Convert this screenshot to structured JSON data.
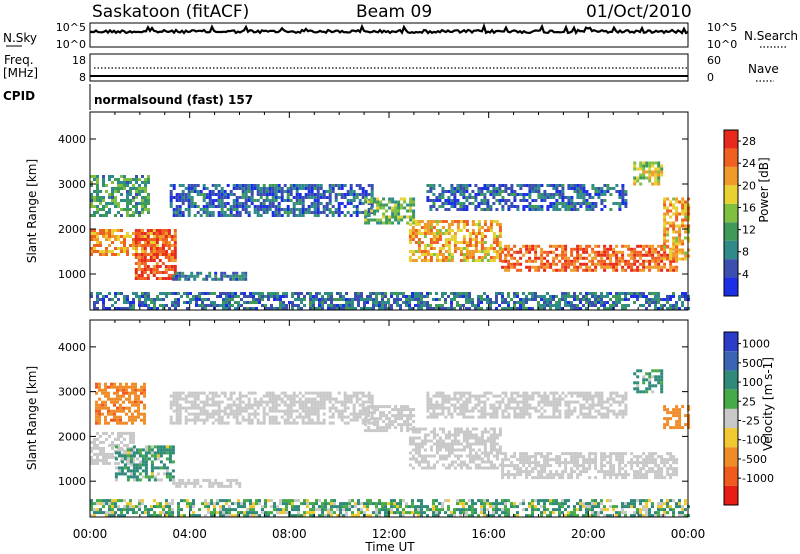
{
  "header": {
    "station": "Saskatoon (fitACF)",
    "beam": "Beam 09",
    "date": "01/Oct/2010"
  },
  "status_panel": {
    "nsky_label": "N.Sky",
    "nsky_ticks": [
      "10^5",
      "10^0"
    ],
    "nsearch_label": "N.Search",
    "nsearch_ticks": [
      "10^5",
      "10^0"
    ],
    "freq_label_line1": "Freq.",
    "freq_label_line2": "[MHz]",
    "freq_ticks": [
      "18",
      "8"
    ],
    "nave_label": "Nave",
    "nave_ticks": [
      "60",
      "0"
    ],
    "cpid_label": "CPID",
    "cpid_value": "normalsound (fast) 157"
  },
  "chart_data": [
    {
      "type": "heatmap",
      "name": "power",
      "ylabel": "Slant Range [km]",
      "yticks": [
        1000,
        2000,
        3000,
        4000
      ],
      "ylim": [
        200,
        4600
      ],
      "xlim": [
        0,
        24
      ],
      "xticks": [
        "00:00",
        "04:00",
        "08:00",
        "12:00",
        "16:00",
        "20:00",
        "00:00"
      ],
      "colorbar": {
        "label": "Power [dB]",
        "ticks": [
          4,
          8,
          12,
          16,
          20,
          24,
          28
        ],
        "range": [
          0,
          30
        ],
        "colors": [
          "#1c2fe6",
          "#3a4fb0",
          "#2f8a8a",
          "#3f9a5a",
          "#7fc040",
          "#e8d232",
          "#f09a2a",
          "#f06020",
          "#e82a1c"
        ]
      },
      "echo_bands_km": [
        {
          "from_h": 0.0,
          "to_h": 3.2,
          "lower": 1400,
          "upper": 2000,
          "dB": 22
        },
        {
          "from_h": 1.8,
          "to_h": 3.4,
          "lower": 900,
          "upper": 2000,
          "dB": 27
        },
        {
          "from_h": 0.0,
          "to_h": 2.3,
          "lower": 2300,
          "upper": 3200,
          "dB": 11
        },
        {
          "from_h": 3.3,
          "to_h": 6.2,
          "lower": 850,
          "upper": 1050,
          "dB": 8
        },
        {
          "from_h": 3.2,
          "to_h": 11.3,
          "lower": 2300,
          "upper": 3000,
          "dB": 6
        },
        {
          "from_h": 11.0,
          "to_h": 13.0,
          "lower": 2150,
          "upper": 2700,
          "dB": 13
        },
        {
          "from_h": 12.8,
          "to_h": 16.5,
          "lower": 1300,
          "upper": 2200,
          "dB": 21
        },
        {
          "from_h": 16.5,
          "to_h": 23.5,
          "lower": 1050,
          "upper": 1650,
          "dB": 25
        },
        {
          "from_h": 13.5,
          "to_h": 21.5,
          "lower": 2450,
          "upper": 3000,
          "dB": 6
        },
        {
          "from_h": 21.8,
          "to_h": 23.0,
          "lower": 3000,
          "upper": 3500,
          "dB": 17
        },
        {
          "from_h": 23.0,
          "to_h": 24.0,
          "lower": 1300,
          "upper": 2700,
          "dB": 21
        },
        {
          "from_h": 0.0,
          "to_h": 24.0,
          "lower": 250,
          "upper": 600,
          "dB": 7
        }
      ]
    },
    {
      "type": "heatmap",
      "name": "velocity",
      "ylabel": "Slant Range [km]",
      "yticks": [
        1000,
        2000,
        3000,
        4000
      ],
      "ylim": [
        200,
        4600
      ],
      "xlim": [
        0,
        24
      ],
      "xlabel": "Time UT",
      "xticks": [
        "00:00",
        "04:00",
        "08:00",
        "12:00",
        "16:00",
        "20:00",
        "00:00"
      ],
      "colorbar": {
        "label": "Velocity [m s-1]",
        "ticks": [
          "1000",
          "500",
          "100",
          "25",
          "-25",
          "-100",
          "-500",
          "-1000"
        ],
        "colors": [
          "#2a3cc8",
          "#3c64b4",
          "#2f8a7a",
          "#46aa46",
          "#c8c8c8",
          "#f0c832",
          "#f08c28",
          "#f05a1e",
          "#e81e14"
        ]
      },
      "echo_bands_km": [
        {
          "from_h": 0.0,
          "to_h": 1.8,
          "lower": 1400,
          "upper": 2100,
          "vel": 0
        },
        {
          "from_h": 0.2,
          "to_h": 2.2,
          "lower": 2300,
          "upper": 3200,
          "vel": -400
        },
        {
          "from_h": 1.0,
          "to_h": 3.3,
          "lower": 1000,
          "upper": 1800,
          "vel": 120
        },
        {
          "from_h": 3.3,
          "to_h": 6.0,
          "lower": 850,
          "upper": 1050,
          "vel": 0
        },
        {
          "from_h": 3.2,
          "to_h": 11.3,
          "lower": 2300,
          "upper": 3000,
          "vel": 0
        },
        {
          "from_h": 11.0,
          "to_h": 13.0,
          "lower": 2150,
          "upper": 2700,
          "vel": 0
        },
        {
          "from_h": 12.8,
          "to_h": 16.5,
          "lower": 1300,
          "upper": 2200,
          "vel": 0
        },
        {
          "from_h": 16.5,
          "to_h": 23.5,
          "lower": 1050,
          "upper": 1650,
          "vel": 0
        },
        {
          "from_h": 13.5,
          "to_h": 21.5,
          "lower": 2450,
          "upper": 3000,
          "vel": 0
        },
        {
          "from_h": 21.8,
          "to_h": 23.0,
          "lower": 3000,
          "upper": 3500,
          "vel": 150
        },
        {
          "from_h": 23.0,
          "to_h": 24.0,
          "lower": 2200,
          "upper": 2700,
          "vel": -350
        },
        {
          "from_h": 0.0,
          "to_h": 24.0,
          "lower": 250,
          "upper": 600,
          "vel": 80
        }
      ]
    }
  ]
}
